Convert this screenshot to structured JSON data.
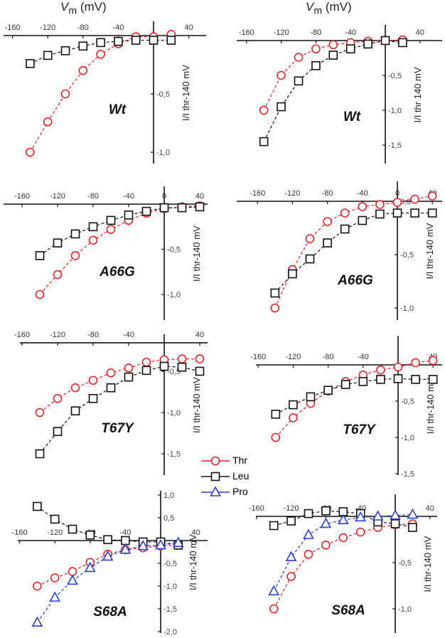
{
  "headers": {
    "left": {
      "var": "V",
      "sub": "m",
      "unit": " (mV)"
    },
    "right": {
      "var": "V",
      "sub": "m",
      "unit": " (mV)"
    }
  },
  "legend": [
    {
      "label": "Thr",
      "color": "#e8242a",
      "marker": "circle"
    },
    {
      "label": "Leu",
      "color": "#111111",
      "marker": "square"
    },
    {
      "label": "Pro",
      "color": "#2a3fd6",
      "marker": "triangle"
    }
  ],
  "chart_data": [
    {
      "type": "line",
      "title": "Wt",
      "xlabel": "Vm (mV)",
      "ylabel": "I/I thr-140 mV",
      "xlim": [
        -160,
        40
      ],
      "xticks": [
        "-160",
        "-120",
        "-80",
        "-40",
        "40"
      ],
      "yticks": [
        {
          "v": -0.5,
          "label": "-0,5"
        },
        {
          "v": -1.0,
          "label": "-1,0"
        }
      ],
      "x": [
        -140,
        -120,
        -100,
        -80,
        -60,
        -40,
        -20,
        0,
        20
      ],
      "series": [
        {
          "name": "Thr",
          "values": [
            -1.0,
            -0.74,
            -0.5,
            -0.3,
            -0.16,
            -0.07,
            -0.01,
            -0.01,
            0.01
          ]
        },
        {
          "name": "Leu",
          "values": [
            -0.24,
            -0.17,
            -0.13,
            -0.09,
            -0.06,
            -0.05,
            -0.04,
            -0.04,
            -0.04
          ]
        }
      ]
    },
    {
      "type": "line",
      "title": "Wt",
      "xlabel": "Vm (mV)",
      "ylabel": "I/I thr 140 mV",
      "xlim": [
        -160,
        40
      ],
      "xticks": [
        "-160",
        "-120",
        "-80",
        "-40",
        "40"
      ],
      "yticks": [
        {
          "v": -0.5,
          "label": "-0,5"
        },
        {
          "v": -1.0,
          "label": "-1,0"
        },
        {
          "v": -1.5,
          "label": "-1,5"
        }
      ],
      "x": [
        -140,
        -120,
        -100,
        -80,
        -60,
        -40,
        -20,
        0,
        20
      ],
      "series": [
        {
          "name": "Thr",
          "values": [
            -1.0,
            -0.5,
            -0.24,
            -0.12,
            -0.06,
            -0.03,
            -0.01,
            0,
            0.01
          ]
        },
        {
          "name": "Leu",
          "values": [
            -1.45,
            -0.95,
            -0.58,
            -0.36,
            -0.21,
            -0.12,
            -0.05,
            0,
            -0.03
          ]
        }
      ]
    },
    {
      "type": "line",
      "title": "A66G",
      "xlabel": "Vm (mV)",
      "ylabel": "I/I thr-140 mV",
      "xlim": [
        -160,
        40
      ],
      "xticks": [
        "-160",
        "-120",
        "-80",
        "-40",
        "0",
        "40"
      ],
      "yticks": [
        {
          "v": -0.5,
          "label": "-0,5"
        },
        {
          "v": -1.0,
          "label": "-1,0"
        }
      ],
      "x": [
        -140,
        -120,
        -100,
        -80,
        -60,
        -40,
        -20,
        0,
        20,
        40
      ],
      "series": [
        {
          "name": "Thr",
          "values": [
            -1.0,
            -0.78,
            -0.57,
            -0.4,
            -0.28,
            -0.18,
            -0.1,
            -0.05,
            -0.03,
            -0.02
          ]
        },
        {
          "name": "Leu",
          "values": [
            -0.57,
            -0.43,
            -0.33,
            -0.25,
            -0.18,
            -0.12,
            -0.08,
            -0.04,
            -0.04,
            -0.03
          ]
        }
      ]
    },
    {
      "type": "line",
      "title": "A66G",
      "xlabel": "Vm (mV)",
      "ylabel": "I/I thr-140 mV",
      "xlim": [
        -160,
        40
      ],
      "xticks": [
        "-160",
        "-120",
        "-80",
        "-40",
        "0",
        "40"
      ],
      "yticks": [
        {
          "v": 0,
          "label": "0,0"
        },
        {
          "v": -0.5,
          "label": "-0,5"
        },
        {
          "v": -1.0,
          "label": "-1,0"
        }
      ],
      "x": [
        -140,
        -120,
        -100,
        -80,
        -60,
        -40,
        -20,
        0,
        20,
        40
      ],
      "series": [
        {
          "name": "Thr",
          "values": [
            -1.0,
            -0.64,
            -0.35,
            -0.19,
            -0.11,
            -0.05,
            -0.03,
            -0.01,
            0.02,
            0.05
          ]
        },
        {
          "name": "Leu",
          "values": [
            -0.86,
            -0.68,
            -0.54,
            -0.39,
            -0.26,
            -0.18,
            -0.12,
            -0.11,
            -0.11,
            -0.11
          ]
        }
      ]
    },
    {
      "type": "line",
      "title": "T67Y",
      "xlabel": "Vm (mV)",
      "ylabel": "I/I thr-140 mV",
      "xlim": [
        -160,
        40
      ],
      "x_axis_at": -0.155,
      "xticks": [
        "-160",
        "-120",
        "-80",
        "-40",
        "40"
      ],
      "yticks": [
        {
          "v": -0.5,
          "label": "-0,5"
        },
        {
          "v": -1.0,
          "label": "-1,0"
        },
        {
          "v": -1.5,
          "label": "-1,5"
        }
      ],
      "x": [
        -140,
        -120,
        -100,
        -80,
        -60,
        -40,
        -20,
        0,
        20,
        40
      ],
      "series": [
        {
          "name": "Thr",
          "values": [
            -1.0,
            -0.83,
            -0.7,
            -0.61,
            -0.52,
            -0.46,
            -0.39,
            -0.36,
            -0.35,
            -0.35
          ]
        },
        {
          "name": "Leu",
          "values": [
            -1.5,
            -1.23,
            -0.98,
            -0.83,
            -0.7,
            -0.57,
            -0.49,
            -0.44,
            -0.45,
            -0.5
          ]
        }
      ]
    },
    {
      "type": "line",
      "title": "T67Y",
      "xlabel": "Vm (mV)",
      "ylabel": "I/I thr-140 mV",
      "xlim": [
        -160,
        40
      ],
      "xticks": [
        "-160",
        "-120",
        "-80",
        "-40",
        "40"
      ],
      "yticks": [
        {
          "v": -0.5,
          "label": "-0,5"
        },
        {
          "v": -1.0,
          "label": "-1,0"
        },
        {
          "v": -1.5,
          "label": "-1,5"
        }
      ],
      "x": [
        -140,
        -120,
        -100,
        -80,
        -60,
        -40,
        -20,
        0,
        20,
        40
      ],
      "series": [
        {
          "name": "Thr",
          "values": [
            -1.0,
            -0.73,
            -0.53,
            -0.36,
            -0.23,
            -0.14,
            -0.07,
            -0.03,
            0.03,
            0.06
          ]
        },
        {
          "name": "Leu",
          "values": [
            -0.68,
            -0.55,
            -0.44,
            -0.35,
            -0.27,
            -0.23,
            -0.2,
            -0.19,
            -0.2,
            -0.2
          ]
        }
      ]
    },
    {
      "type": "line",
      "title": "S68A",
      "xlabel": "Vm (mV)",
      "ylabel": "I/I thr-140 mV",
      "xlim": [
        -160,
        40
      ],
      "xticks": [
        "-160",
        "-120",
        "-80",
        "-40",
        "40"
      ],
      "yticks": [
        {
          "v": 1.0,
          "label": "1,0"
        },
        {
          "v": 0.5,
          "label": "0,5"
        },
        {
          "v": -0.5,
          "label": "-0,5"
        },
        {
          "v": -1.0,
          "label": "-1,0"
        },
        {
          "v": -1.5,
          "label": "-1,5"
        },
        {
          "v": -2.0,
          "label": "-2,0"
        }
      ],
      "x": [
        -140,
        -120,
        -100,
        -80,
        -60,
        -40,
        -20,
        0,
        20
      ],
      "series": [
        {
          "name": "Thr",
          "values": [
            -1.0,
            -0.82,
            -0.68,
            -0.48,
            -0.3,
            -0.2,
            -0.16,
            -0.12,
            -0.1
          ]
        },
        {
          "name": "Leu",
          "values": [
            0.75,
            0.47,
            0.25,
            0.12,
            0.02,
            0,
            -0.03,
            -0.03,
            -0.1
          ]
        },
        {
          "name": "Pro",
          "values": [
            -1.8,
            -1.25,
            -0.88,
            -0.6,
            -0.35,
            -0.2,
            -0.12,
            -0.1,
            -0.05
          ]
        }
      ]
    },
    {
      "type": "line",
      "title": "S68A",
      "xlabel": "Vm (mV)",
      "ylabel": "I/I thr-140 mV",
      "xlim": [
        -160,
        40
      ],
      "xticks": [
        "-160",
        "-120",
        "-80",
        "-40",
        "40"
      ],
      "yticks": [
        {
          "v": -0.5,
          "label": "-0,5"
        },
        {
          "v": -1.0,
          "label": "-1,0"
        }
      ],
      "x": [
        -140,
        -120,
        -100,
        -80,
        -60,
        -40,
        -20,
        0,
        20
      ],
      "series": [
        {
          "name": "Thr",
          "values": [
            -1.0,
            -0.65,
            -0.41,
            -0.31,
            -0.23,
            -0.17,
            -0.12,
            -0.09,
            -0.08
          ]
        },
        {
          "name": "Leu",
          "values": [
            -0.1,
            -0.05,
            0.03,
            0.06,
            0.05,
            0.03,
            -0.06,
            -0.08,
            -0.12
          ]
        },
        {
          "name": "Pro",
          "values": [
            -0.81,
            -0.44,
            -0.2,
            -0.08,
            -0.04,
            -0.01,
            0,
            0.01,
            0.02
          ]
        }
      ]
    }
  ]
}
